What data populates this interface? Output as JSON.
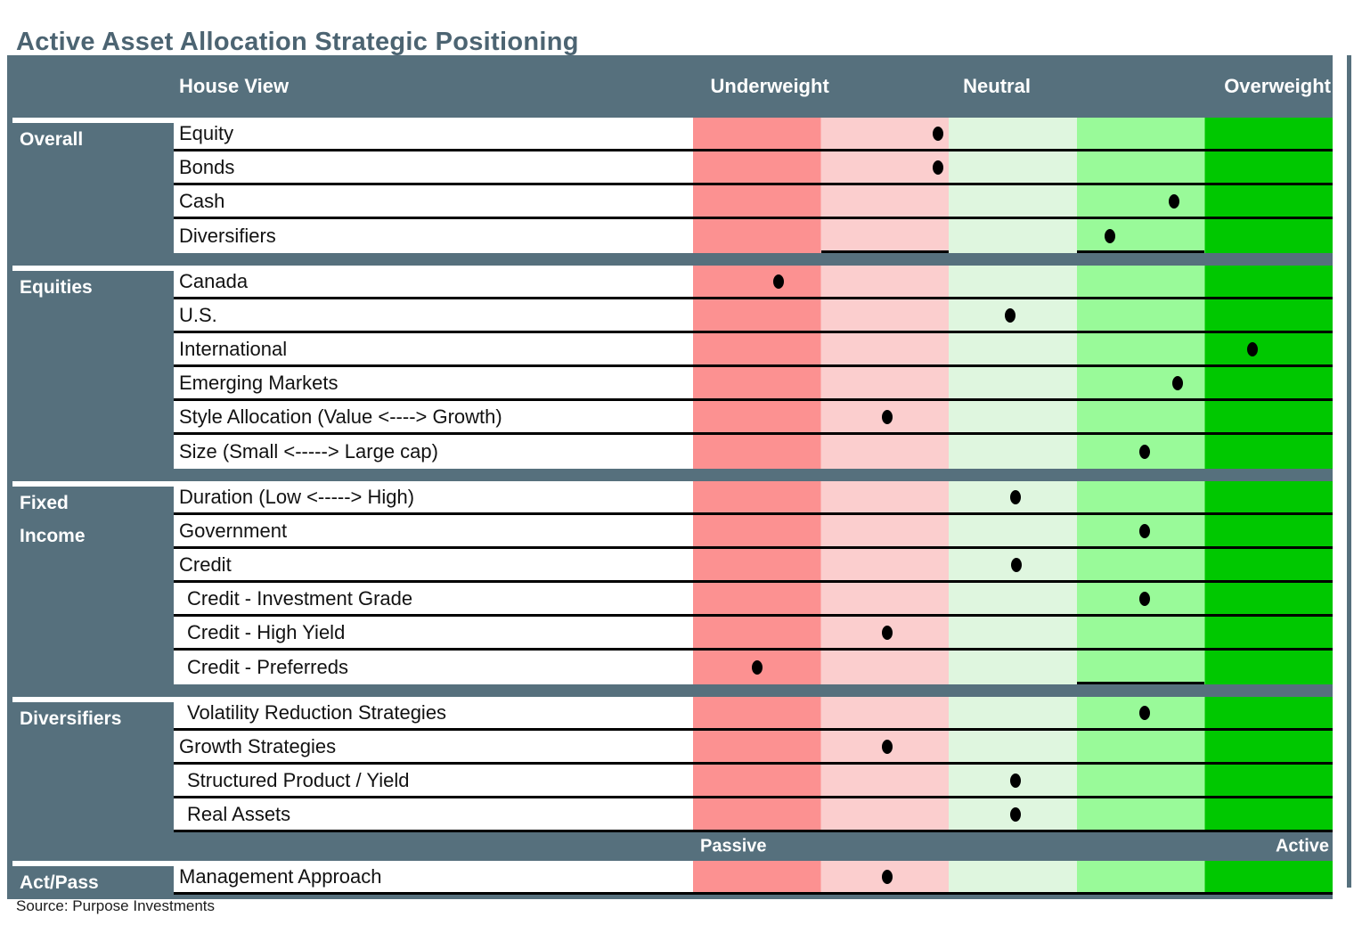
{
  "title": "Active Asset Allocation Strategic Positioning",
  "source": "Source: Purpose Investments",
  "header": {
    "house_view": "House View",
    "underweight": "Underweight",
    "neutral": "Neutral",
    "overweight": "Overweight"
  },
  "footer_scale": {
    "passive": "Passive",
    "active": "Active"
  },
  "colors": {
    "slate": "#56707D",
    "title_text": "#4C6472",
    "band1": "#FC9191",
    "band2": "#FBCECE",
    "band3": "#DFF6DF",
    "band4": "#99FA99",
    "band5": "#00C800",
    "dot": "#000000"
  },
  "chart_data": {
    "type": "table",
    "title": "Active Asset Allocation Strategic Positioning",
    "columns": [
      "House View",
      "Underweight",
      "Neutral",
      "Overweight"
    ],
    "scale": {
      "min_label": "Underweight",
      "mid_label": "Neutral",
      "max_label": "Overweight",
      "position_scale": "position_pct is 0-100 from far-left (strong underweight) to far-right (strong overweight)",
      "bands": [
        "strong underweight",
        "underweight",
        "neutral",
        "overweight",
        "strong overweight"
      ]
    },
    "groups": [
      {
        "label": "Overall",
        "rows": [
          {
            "label": "Equity",
            "position_pct": 38.3,
            "band": 2
          },
          {
            "label": "Bonds",
            "position_pct": 38.3,
            "band": 2
          },
          {
            "label": "Cash",
            "position_pct": 75.2,
            "band": 4
          },
          {
            "label": "Diversifiers",
            "position_pct": 65.2,
            "band": 4,
            "border_bottom": false,
            "cell_underlines": [
              2,
              4
            ]
          }
        ]
      },
      {
        "label": "Equities",
        "rows": [
          {
            "label": "Canada",
            "position_pct": 13.4,
            "band": 1
          },
          {
            "label": "U.S.",
            "position_pct": 49.6,
            "band": 3
          },
          {
            "label": "International",
            "position_pct": 87.5,
            "band": 5
          },
          {
            "label": "Emerging Markets",
            "position_pct": 75.8,
            "band": 4
          },
          {
            "label": "Style Allocation (Value <----> Growth)",
            "position_pct": 30.4,
            "band": 2
          },
          {
            "label": "Size (Small <----->  Large cap)",
            "position_pct": 70.6,
            "band": 4,
            "border_bottom": false
          }
        ]
      },
      {
        "label": "Fixed Income",
        "rows": [
          {
            "label": "Duration (Low <-----> High)",
            "position_pct": 50.4,
            "band": 3
          },
          {
            "label": "Government",
            "position_pct": 70.6,
            "band": 4
          },
          {
            "label": "Credit",
            "position_pct": 50.6,
            "band": 3
          },
          {
            "label": "Credit - Investment Grade",
            "position_pct": 70.6,
            "band": 4,
            "indent": true
          },
          {
            "label": "Credit - High Yield",
            "position_pct": 30.4,
            "band": 2,
            "indent": true
          },
          {
            "label": "Credit - Preferreds",
            "position_pct": 10.0,
            "band": 1,
            "indent": true,
            "border_bottom": false,
            "cell_underlines": [
              4
            ]
          }
        ]
      },
      {
        "label": "Diversifiers",
        "rows": [
          {
            "label": "Volatility Reduction Strategies",
            "position_pct": 70.6,
            "band": 4,
            "indent": true
          },
          {
            "label": "Growth Strategies",
            "position_pct": 30.4,
            "band": 2
          },
          {
            "label": "Structured Product / Yield",
            "position_pct": 50.4,
            "band": 3,
            "indent": true
          },
          {
            "label": "Real Assets",
            "position_pct": 50.4,
            "band": 3,
            "indent": true
          }
        ]
      },
      {
        "label": "Act/Pass",
        "scale_before": true,
        "rows": [
          {
            "label": "Management Approach",
            "position_pct": 30.4,
            "band": 2
          }
        ]
      }
    ]
  }
}
